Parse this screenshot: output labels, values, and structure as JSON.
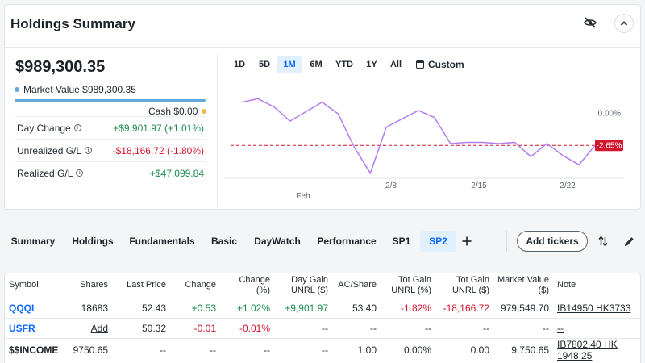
{
  "summary": {
    "title": "Holdings Summary",
    "total_value": "$989,300.35",
    "market_value_label": "Market Value $989,300.35",
    "cash_label": "Cash $0.00",
    "stats": [
      {
        "label": "Day Change",
        "value": "+$9,901.97 (+1.01%)",
        "tone": "pos"
      },
      {
        "label": "Unrealized G/L",
        "value": "-$18,166.72 (-1.80%)",
        "tone": "neg"
      },
      {
        "label": "Realized G/L",
        "value": "+$47,099.84",
        "tone": "pos"
      }
    ],
    "colors": {
      "market_value_dot": "#64a8dc",
      "cash_dot": "#f7b84b",
      "positive": "#1a8c4e",
      "negative": "#d3162d",
      "accent": "#0f69ff"
    }
  },
  "ranges": [
    "1D",
    "5D",
    "1M",
    "6M",
    "YTD",
    "1Y",
    "All"
  ],
  "active_range": "1M",
  "custom_label": "Custom",
  "chart_data": {
    "type": "line",
    "series": [
      {
        "values": [
          1.0,
          1.3,
          0.6,
          -0.6,
          0.2,
          1.0,
          0.0,
          -2.8,
          -5.0,
          -1.1,
          -0.4,
          0.3,
          -0.3,
          -2.5,
          -2.4,
          -2.4,
          -2.5,
          -2.4,
          -3.6,
          -2.5,
          -3.5,
          -4.3,
          -2.65
        ]
      }
    ],
    "x_tick_labels": [
      "2/8",
      "2/15",
      "2/22"
    ],
    "month_label": "Feb",
    "baseline_label": "0.00%",
    "current_label": "-2.65%",
    "current_value": -2.65,
    "ylim": [
      -5.5,
      2
    ],
    "line_color": "#b57cf0",
    "current_color": "#d3162d"
  },
  "tabs": [
    "Summary",
    "Holdings",
    "Fundamentals",
    "Basic",
    "DayWatch",
    "Performance",
    "SP1",
    "SP2"
  ],
  "active_tab": "SP2",
  "add_tickers_label": "Add tickers",
  "table": {
    "headers": [
      "Symbol",
      "Shares",
      "Last Price",
      "Change",
      "Change (%)",
      "Day Gain UNRL ($)",
      "AC/Share",
      "Tot Gain UNRL (%)",
      "Tot Gain UNRL ($)",
      "Market Value ($)",
      "Note"
    ],
    "rows": [
      {
        "symbol": "QQQI",
        "shares": "18683",
        "last": "52.43",
        "change": "+0.53",
        "change_pct": "+1.02%",
        "day_gain": "+9,901.97",
        "ac": "53.40",
        "tot_pct": "-1.82%",
        "tot_usd": "-18,166.72",
        "mv": "979,549.70",
        "note": "IB14950 HK3733"
      },
      {
        "symbol": "USFR",
        "shares": "Add",
        "last": "50.32",
        "change": "-0.01",
        "change_pct": "-0.01%",
        "day_gain": "--",
        "ac": "--",
        "tot_pct": "--",
        "tot_usd": "--",
        "mv": "--",
        "note": "--"
      },
      {
        "symbol": "$$INCOME",
        "shares": "9750.65",
        "last": "--",
        "change": "--",
        "change_pct": "--",
        "day_gain": "--",
        "ac": "1.00",
        "tot_pct": "0.00%",
        "tot_usd": "0.00",
        "mv": "9,750.65",
        "note": "IB7802.40 HK 1948.25"
      }
    ]
  }
}
